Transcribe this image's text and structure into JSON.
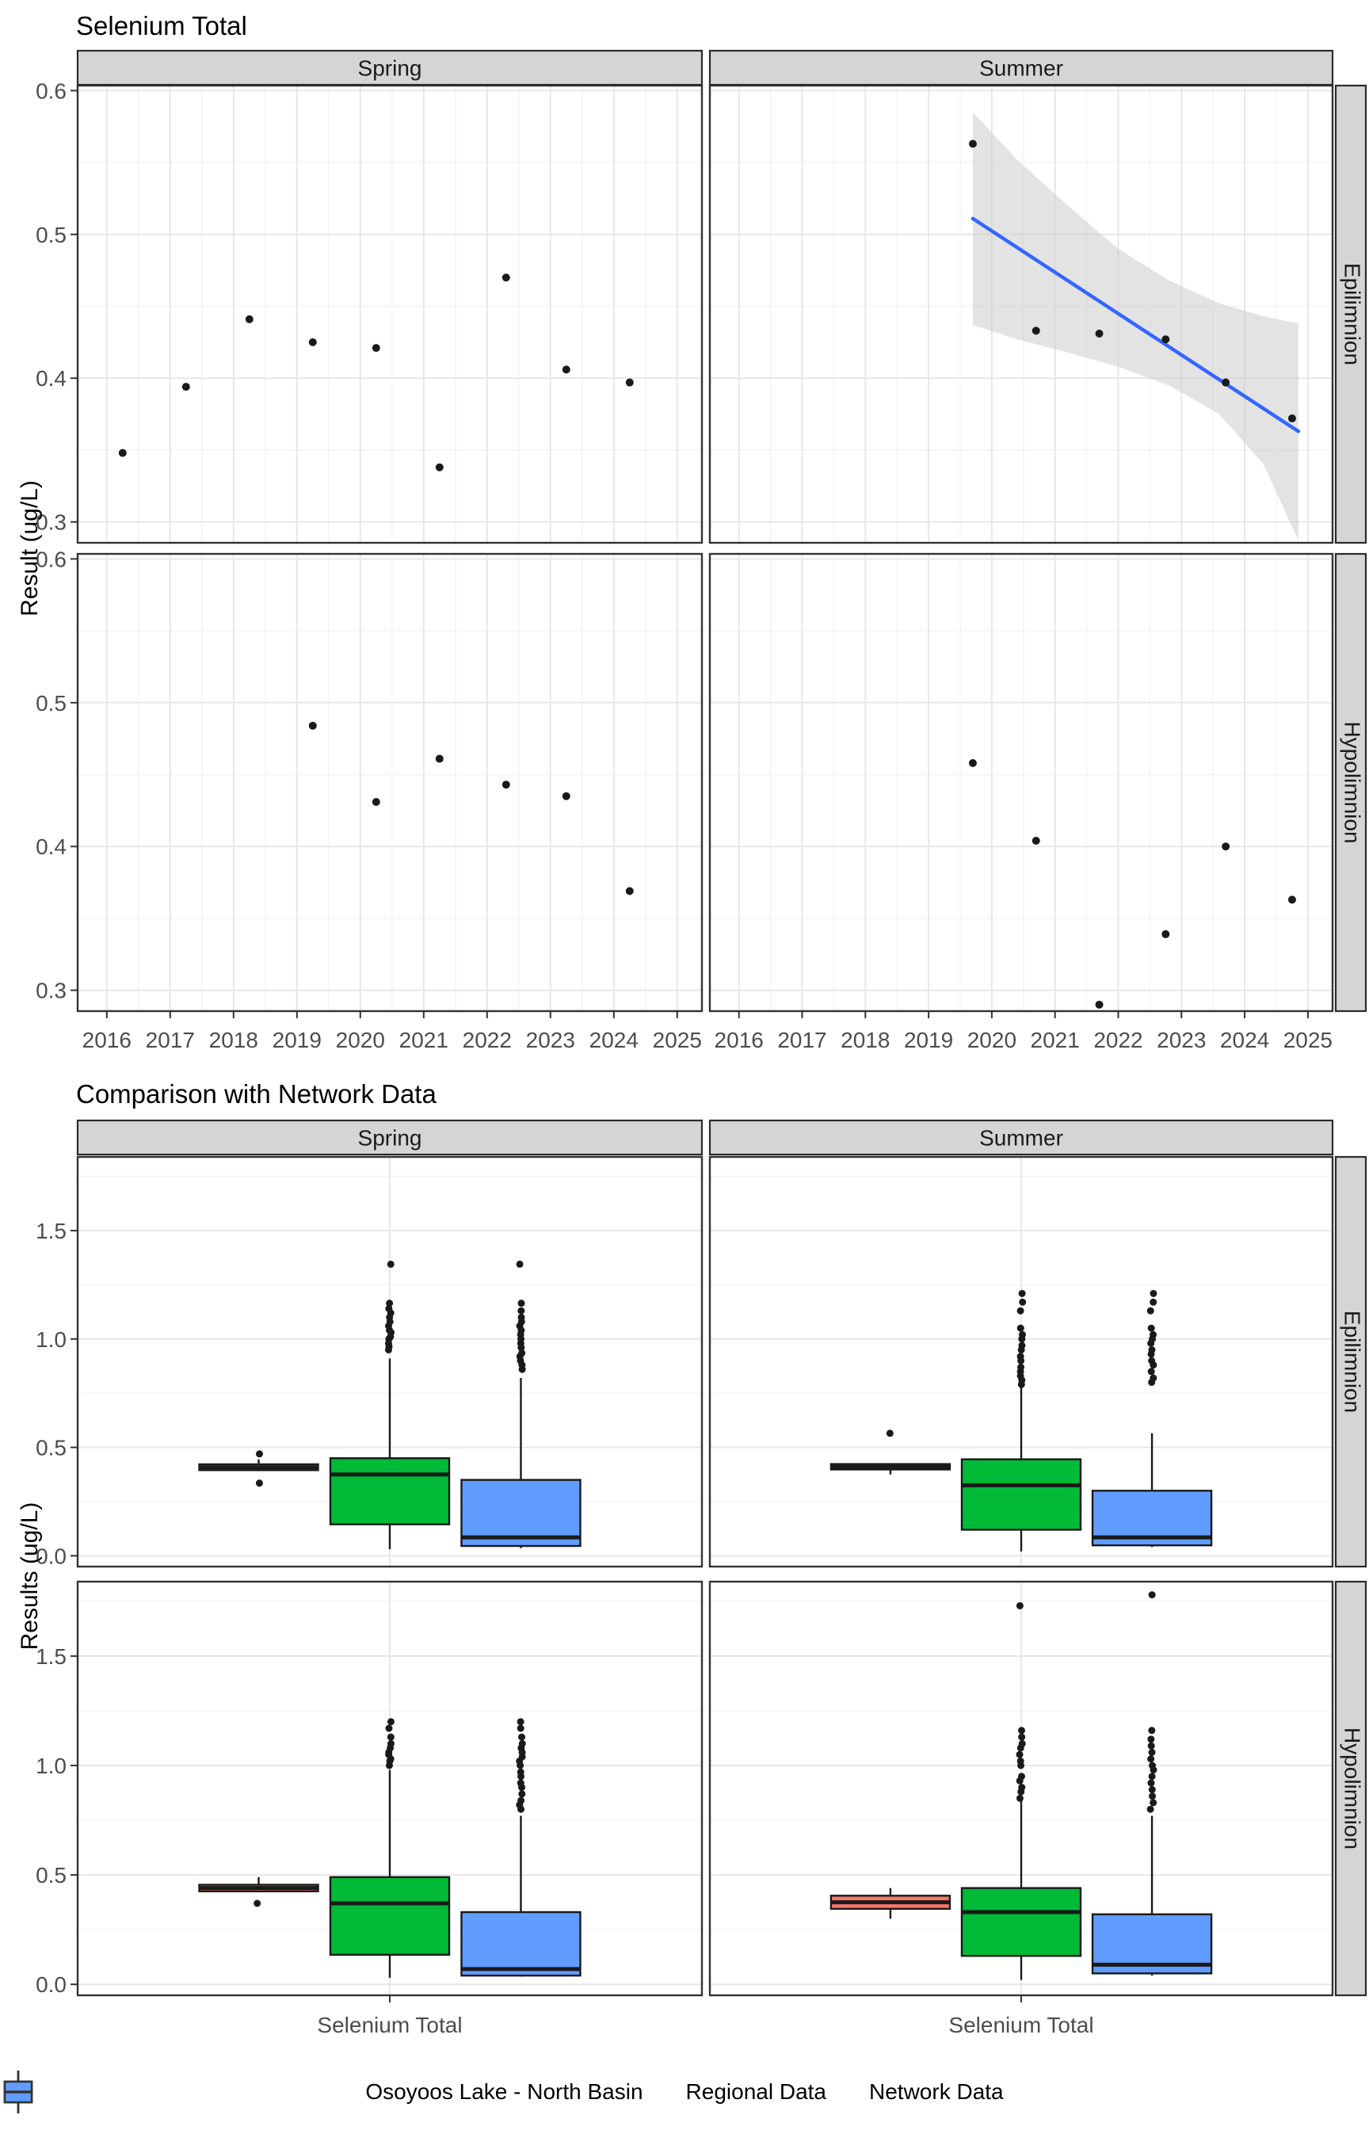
{
  "titles": {
    "chart1": "Selenium Total",
    "chart2": "Comparison with Network Data"
  },
  "colors": {
    "salmon": "#F8766D",
    "green": "#00BA38",
    "blue": "#619CFF",
    "trend_line": "#3366FF",
    "ribbon": "#cccccc",
    "strip_bg": "#d5d5d5",
    "strip_border": "#2b2b2b",
    "panel_border": "#333333",
    "grid_major": "#e7e7e7",
    "grid_minor": "#f3f3f3",
    "tick_text": "#4d4d4d",
    "point": "#1a1a1a"
  },
  "legend": {
    "items": [
      {
        "label": "Osoyoos Lake - North Basin",
        "color": "#F8766D"
      },
      {
        "label": "Regional Data",
        "color": "#00BA38"
      },
      {
        "label": "Network Data",
        "color": "#619CFF"
      }
    ]
  },
  "chart_data": [
    {
      "id": "selenium-trend",
      "type": "scatter",
      "title": "Selenium Total",
      "ylabel": "Result (ug/L)",
      "col_facets": [
        "Spring",
        "Summer"
      ],
      "row_facets": [
        "Epilimnion",
        "Hypolimnion"
      ],
      "x_ticks": [
        2016,
        2017,
        2018,
        2019,
        2020,
        2021,
        2022,
        2023,
        2024,
        2025
      ],
      "y_ticks": [
        0.3,
        0.4,
        0.5,
        0.6
      ],
      "y_minor": [
        0.35,
        0.45,
        0.55
      ],
      "xlim": [
        2015.54,
        2025.39
      ],
      "ylim": [
        0.2855,
        0.6035
      ],
      "grid": true,
      "panels": [
        {
          "col": "Spring",
          "row": "Epilimnion",
          "points": [
            [
              2016.25,
              0.348
            ],
            [
              2017.25,
              0.394
            ],
            [
              2018.25,
              0.441
            ],
            [
              2019.25,
              0.425
            ],
            [
              2020.25,
              0.421
            ],
            [
              2021.25,
              0.338
            ],
            [
              2022.3,
              0.47
            ],
            [
              2023.25,
              0.406
            ],
            [
              2024.25,
              0.397
            ]
          ]
        },
        {
          "col": "Summer",
          "row": "Epilimnion",
          "points": [
            [
              2019.7,
              0.563
            ],
            [
              2020.7,
              0.433
            ],
            [
              2021.7,
              0.431
            ],
            [
              2022.75,
              0.427
            ],
            [
              2023.7,
              0.397
            ],
            [
              2024.75,
              0.372
            ]
          ],
          "trend": {
            "x": [
              2019.7,
              2024.85
            ],
            "y": [
              0.511,
              0.363
            ]
          },
          "ribbon": {
            "x": [
              2019.7,
              2020.4,
              2021.2,
              2022.0,
              2022.8,
              2023.6,
              2024.3,
              2024.85
            ],
            "upper": [
              0.585,
              0.552,
              0.52,
              0.49,
              0.468,
              0.452,
              0.443,
              0.438
            ],
            "lower": [
              0.437,
              0.427,
              0.418,
              0.408,
              0.395,
              0.375,
              0.34,
              0.287
            ]
          }
        },
        {
          "col": "Spring",
          "row": "Hypolimnion",
          "points": [
            [
              2019.25,
              0.484
            ],
            [
              2020.25,
              0.431
            ],
            [
              2021.25,
              0.461
            ],
            [
              2022.3,
              0.443
            ],
            [
              2023.25,
              0.435
            ],
            [
              2024.25,
              0.369
            ]
          ]
        },
        {
          "col": "Summer",
          "row": "Hypolimnion",
          "points": [
            [
              2019.7,
              0.458
            ],
            [
              2020.7,
              0.404
            ],
            [
              2021.7,
              0.29
            ],
            [
              2022.75,
              0.339
            ],
            [
              2023.7,
              0.4
            ],
            [
              2024.75,
              0.363
            ]
          ]
        }
      ]
    },
    {
      "id": "network-comparison",
      "type": "boxplot",
      "title": "Comparison with Network Data",
      "ylabel": "Results (ug/L)",
      "categories": [
        "Selenium Total"
      ],
      "col_facets": [
        "Spring",
        "Summer"
      ],
      "row_facets": [
        "Epilimnion",
        "Hypolimnion"
      ],
      "y_ticks": [
        0.0,
        0.5,
        1.0,
        1.5
      ],
      "y_minor": [
        0.25,
        0.75,
        1.25,
        1.75
      ],
      "ylim": [
        -0.05,
        1.84
      ],
      "grid": true,
      "groups": [
        "Osoyoos Lake - North Basin",
        "Regional Data",
        "Network Data"
      ],
      "panels": [
        {
          "col": "Spring",
          "row": "Epilimnion",
          "boxes": [
            {
              "group": "Osoyoos Lake - North Basin",
              "whisker_low": 0.39,
              "q1": 0.395,
              "median": 0.408,
              "q3": 0.422,
              "whisker_high": 0.445,
              "outliers": [
                0.47,
                0.335
              ]
            },
            {
              "group": "Regional Data",
              "whisker_low": 0.03,
              "q1": 0.145,
              "median": 0.375,
              "q3": 0.45,
              "whisker_high": 0.91,
              "outliers": [
                0.95,
                0.965,
                0.98,
                1.0,
                1.01,
                1.03,
                1.04,
                1.06,
                1.08,
                1.1,
                1.12,
                1.14,
                1.165,
                1.345
              ]
            },
            {
              "group": "Network Data",
              "whisker_low": 0.035,
              "q1": 0.045,
              "median": 0.085,
              "q3": 0.35,
              "whisker_high": 0.82,
              "outliers": [
                0.86,
                0.88,
                0.9,
                0.92,
                0.935,
                0.96,
                0.98,
                1.0,
                1.02,
                1.04,
                1.06,
                1.08,
                1.1,
                1.13,
                1.165,
                1.345
              ]
            }
          ]
        },
        {
          "col": "Summer",
          "row": "Epilimnion",
          "boxes": [
            {
              "group": "Osoyoos Lake - North Basin",
              "whisker_low": 0.375,
              "q1": 0.398,
              "median": 0.41,
              "q3": 0.423,
              "whisker_high": 0.425,
              "outliers": [
                0.565
              ]
            },
            {
              "group": "Regional Data",
              "whisker_low": 0.02,
              "q1": 0.12,
              "median": 0.325,
              "q3": 0.445,
              "whisker_high": 0.78,
              "outliers": [
                0.79,
                0.81,
                0.83,
                0.85,
                0.87,
                0.9,
                0.92,
                0.95,
                0.97,
                1.0,
                1.02,
                1.05,
                1.13,
                1.17,
                1.21
              ]
            },
            {
              "group": "Network Data",
              "whisker_low": 0.04,
              "q1": 0.048,
              "median": 0.085,
              "q3": 0.3,
              "whisker_high": 0.565,
              "outliers": [
                0.8,
                0.82,
                0.85,
                0.88,
                0.9,
                0.93,
                0.95,
                0.98,
                1.0,
                1.02,
                1.05,
                1.13,
                1.17,
                1.21
              ]
            }
          ]
        },
        {
          "col": "Spring",
          "row": "Hypolimnion",
          "boxes": [
            {
              "group": "Osoyoos Lake - North Basin",
              "whisker_low": 0.42,
              "q1": 0.425,
              "median": 0.44,
              "q3": 0.455,
              "whisker_high": 0.49,
              "outliers": [
                0.37
              ]
            },
            {
              "group": "Regional Data",
              "whisker_low": 0.03,
              "q1": 0.135,
              "median": 0.37,
              "q3": 0.49,
              "whisker_high": 0.98,
              "outliers": [
                1.0,
                1.02,
                1.03,
                1.05,
                1.06,
                1.08,
                1.1,
                1.13,
                1.17,
                1.2
              ]
            },
            {
              "group": "Network Data",
              "whisker_low": 0.035,
              "q1": 0.04,
              "median": 0.07,
              "q3": 0.33,
              "whisker_high": 0.77,
              "outliers": [
                0.8,
                0.82,
                0.84,
                0.87,
                0.9,
                0.92,
                0.95,
                0.97,
                1.0,
                1.02,
                1.04,
                1.06,
                1.08,
                1.1,
                1.13,
                1.17,
                1.2
              ]
            }
          ]
        },
        {
          "col": "Summer",
          "row": "Hypolimnion",
          "boxes": [
            {
              "group": "Osoyoos Lake - North Basin",
              "whisker_low": 0.3,
              "q1": 0.345,
              "median": 0.375,
              "q3": 0.405,
              "whisker_high": 0.44,
              "outliers": []
            },
            {
              "group": "Regional Data",
              "whisker_low": 0.02,
              "q1": 0.13,
              "median": 0.33,
              "q3": 0.44,
              "whisker_high": 0.84,
              "outliers": [
                0.85,
                0.88,
                0.9,
                0.93,
                0.95,
                1.0,
                1.02,
                1.05,
                1.08,
                1.1,
                1.13,
                1.16,
                1.73
              ]
            },
            {
              "group": "Network Data",
              "whisker_low": 0.04,
              "q1": 0.05,
              "median": 0.09,
              "q3": 0.32,
              "whisker_high": 0.77,
              "outliers": [
                0.8,
                0.83,
                0.86,
                0.89,
                0.92,
                0.95,
                0.98,
                1.0,
                1.03,
                1.06,
                1.09,
                1.12,
                1.16,
                1.78
              ]
            }
          ]
        }
      ]
    }
  ]
}
